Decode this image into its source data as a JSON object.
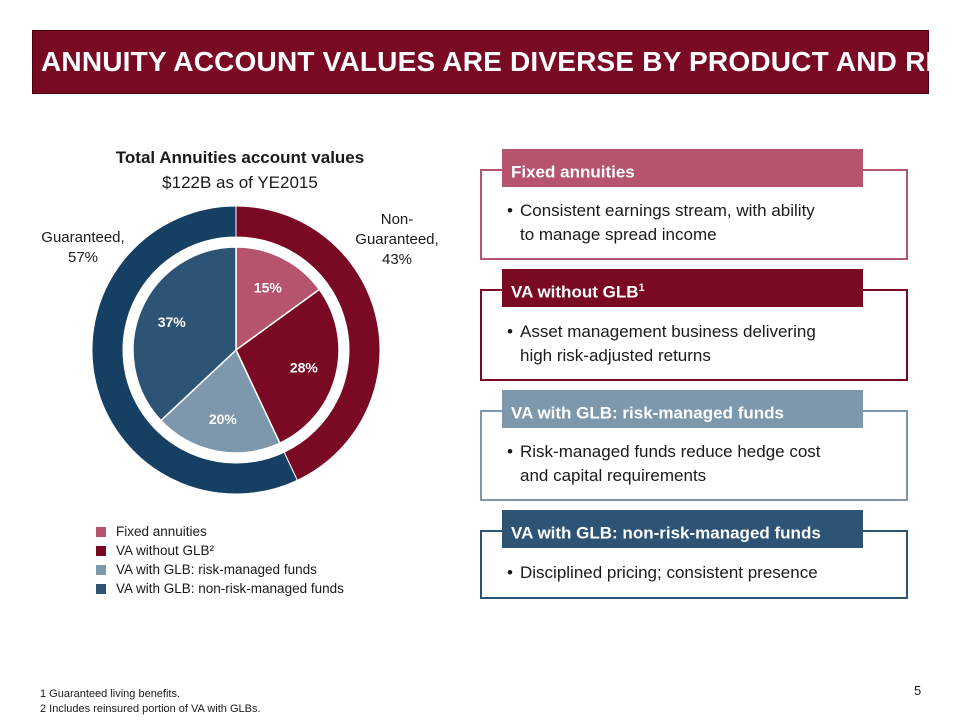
{
  "title": "ANNUITY ACCOUNT VALUES ARE DIVERSE BY PRODUCT AND RISK",
  "chart_data": {
    "type": "pie",
    "title": "Total Annuities account values",
    "subtitle": "$122B as of YE2015",
    "inner": {
      "categories": [
        "Fixed annuities",
        "VA without GLB²",
        "VA with GLB: risk-managed funds",
        "VA with GLB: non-risk-managed funds"
      ],
      "values": [
        15,
        28,
        20,
        37
      ],
      "labels": [
        "15%",
        "28%",
        "20%",
        "37%"
      ],
      "colors": [
        "#b5546c",
        "#7a0a23",
        "#7d98ad",
        "#2d5475"
      ]
    },
    "outer": {
      "categories": [
        "Non-Guaranteed",
        "Guaranteed"
      ],
      "values": [
        43,
        57
      ],
      "colors": [
        "#7a0a23",
        "#153f63"
      ]
    },
    "annotations": {
      "guaranteed": [
        "Guaranteed,",
        "57%"
      ],
      "non_guaranteed": [
        "Non-",
        "Guaranteed,",
        "43%"
      ]
    },
    "legend": [
      "Fixed annuities",
      "VA without GLB²",
      "VA with GLB: risk-managed funds",
      "VA with GLB: non-risk-managed funds"
    ]
  },
  "boxes": [
    {
      "header": "Fixed annuities",
      "header_sup": "",
      "bullet": [
        "Consistent earnings stream, with ability",
        "to manage spread income"
      ],
      "color": "#b5546c"
    },
    {
      "header": "VA without GLB",
      "header_sup": "1",
      "bullet": [
        "Asset management business delivering",
        "high risk-adjusted returns"
      ],
      "color": "#7a0a23"
    },
    {
      "header": "VA with GLB: risk-managed funds",
      "header_sup": "",
      "bullet": [
        "Risk-managed funds reduce hedge cost",
        "and capital requirements"
      ],
      "color": "#7d98ad"
    },
    {
      "header": "VA with GLB: non-risk-managed funds",
      "header_sup": "",
      "bullet": [
        "Disciplined pricing; consistent presence"
      ],
      "color": "#2d5475"
    }
  ],
  "bullet_char": "•",
  "footnotes": [
    "1  Guaranteed living benefits.",
    "2  Includes reinsured portion of VA with GLBs."
  ],
  "page_number": "5"
}
